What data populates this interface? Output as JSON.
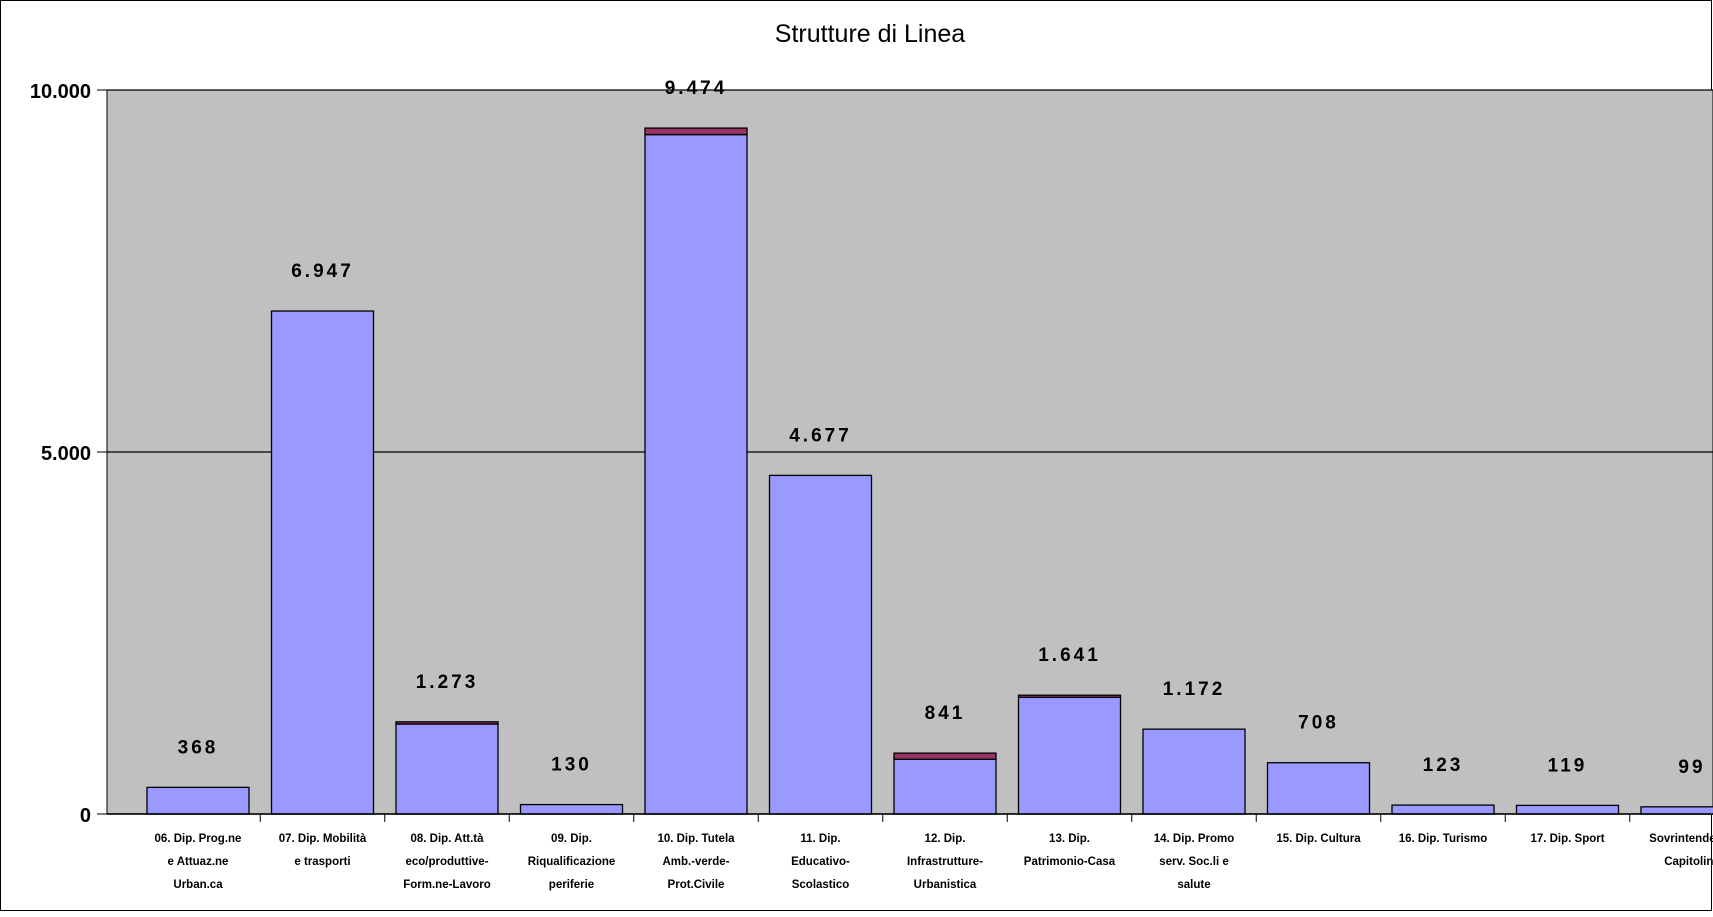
{
  "chart_data": {
    "type": "bar",
    "stacked": true,
    "title": "Strutture di Linea",
    "xlabel": "",
    "ylabel": "",
    "ylim": [
      0,
      10000
    ],
    "yticks": [
      {
        "value": 0,
        "label": "0"
      },
      {
        "value": 5000,
        "label": "5.000"
      },
      {
        "value": 10000,
        "label": "10.000"
      }
    ],
    "grid": true,
    "legend": "none",
    "categories": [
      [
        "06. Dip. Prog.ne",
        "e Attuaz.ne",
        "Urban.ca"
      ],
      [
        "07. Dip. Mobilità",
        "e trasporti"
      ],
      [
        "08. Dip. Att.tà",
        "eco/produttive-",
        "Form.ne-Lavoro"
      ],
      [
        "09. Dip.",
        "Riqualificazione",
        "periferie"
      ],
      [
        "10. Dip. Tutela",
        "Amb.-verde-",
        "Prot.Civile"
      ],
      [
        "11. Dip.",
        "Educativo-",
        "Scolastico"
      ],
      [
        "12. Dip.",
        "Infrastrutture-",
        "Urbanistica"
      ],
      [
        "13. Dip.",
        "Patrimonio-Casa"
      ],
      [
        "14. Dip. Promo",
        "serv. Soc.li e",
        "salute"
      ],
      [
        "15. Dip. Cultura"
      ],
      [
        "16. Dip. Turismo"
      ],
      [
        "17. Dip. Sport"
      ],
      [
        "Sovrintendenza",
        "Capitolina"
      ]
    ],
    "series": [
      {
        "values": [
          368,
          6947,
          1243,
          130,
          9384,
          4677,
          756,
          1611,
          1172,
          708,
          123,
          119,
          99
        ],
        "color": "#9999ff"
      },
      {
        "values": [
          0,
          0,
          30,
          0,
          90,
          0,
          85,
          30,
          0,
          0,
          0,
          0,
          0
        ],
        "color": "#993366"
      }
    ],
    "data_labels": [
      "368",
      "6.947",
      "1.273",
      "130",
      "9.474",
      "4.677",
      "841",
      "1.641",
      "1.172",
      "708",
      "123",
      "119",
      "99"
    ],
    "colors": {
      "plot_background": "#c0c0c0",
      "gridline": "#000000",
      "bar_outline": "#000000"
    }
  }
}
